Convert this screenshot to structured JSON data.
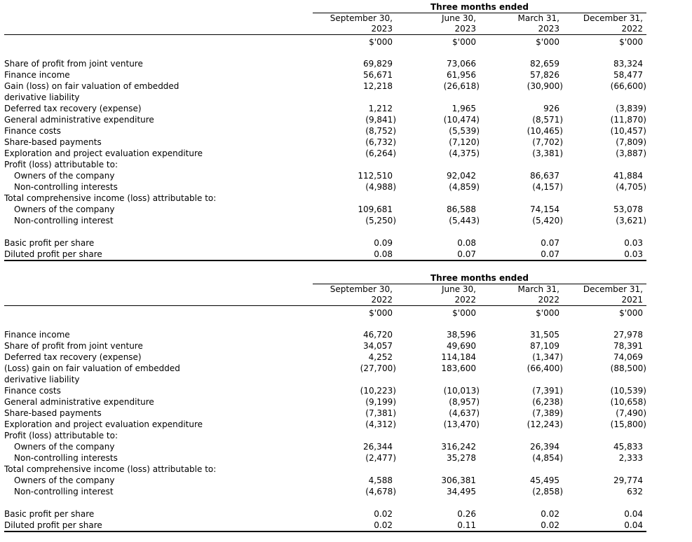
{
  "page": {
    "background_color": "#ffffff",
    "text_color": "#000000"
  },
  "tables": [
    {
      "name": "quarterly-results-2023",
      "title": "Three months ended",
      "unit": "$'000",
      "columns": [
        {
          "line1": "September 30,",
          "line2": "2023"
        },
        {
          "line1": "June 30,",
          "line2": "2023"
        },
        {
          "line1": "March 31,",
          "line2": "2023"
        },
        {
          "line1": "December 31,",
          "line2": "2022"
        }
      ],
      "rows": [
        {
          "label": "Share of profit from joint venture",
          "values": [
            "69,829",
            "73,066",
            "82,659",
            "83,324"
          ]
        },
        {
          "label": "Finance income",
          "values": [
            "56,671",
            "61,956",
            "57,826",
            "58,477"
          ]
        },
        {
          "label": "Gain (loss) on fair valuation of embedded",
          "label2": "derivative liability",
          "values": [
            "12,218",
            "(26,618)",
            "(30,900)",
            "(66,600)"
          ]
        },
        {
          "label": "Deferred tax recovery (expense)",
          "values": [
            "1,212",
            "1,965",
            "926",
            "(3,839)"
          ]
        },
        {
          "label": "General administrative expenditure",
          "values": [
            "(9,841)",
            "(10,474)",
            "(8,571)",
            "(11,870)"
          ]
        },
        {
          "label": "Finance costs",
          "values": [
            "(8,752)",
            "(5,539)",
            "(10,465)",
            "(10,457)"
          ]
        },
        {
          "label": "Share-based payments",
          "values": [
            "(6,732)",
            "(7,120)",
            "(7,702)",
            "(7,809)"
          ]
        },
        {
          "label": "Exploration and project evaluation expenditure",
          "values": [
            "(6,264)",
            "(4,375)",
            "(3,381)",
            "(3,887)"
          ]
        },
        {
          "label": "Profit (loss) attributable to:"
        },
        {
          "label": "Owners of the company",
          "indent": true,
          "values": [
            "112,510",
            "92,042",
            "86,637",
            "41,884"
          ]
        },
        {
          "label": "Non-controlling interests",
          "indent": true,
          "values": [
            "(4,988)",
            "(4,859)",
            "(4,157)",
            "(4,705)"
          ]
        },
        {
          "label": "Total comprehensive income (loss) attributable to:"
        },
        {
          "label": "Owners of the company",
          "indent": true,
          "values": [
            "109,681",
            "86,588",
            "74,154",
            "53,078"
          ]
        },
        {
          "label": "Non-controlling interest",
          "indent": true,
          "values": [
            "(5,250)",
            "(5,443)",
            "(5,420)",
            "(3,621)"
          ]
        },
        {
          "label": "Basic profit per share",
          "gap_before": true,
          "values": [
            "0.09",
            "0.08",
            "0.07",
            "0.03"
          ]
        },
        {
          "label": "Diluted profit per share",
          "values": [
            "0.08",
            "0.07",
            "0.07",
            "0.03"
          ]
        }
      ]
    },
    {
      "name": "quarterly-results-2022",
      "title": "Three months ended",
      "unit": "$'000",
      "columns": [
        {
          "line1": "September 30,",
          "line2": "2022"
        },
        {
          "line1": "June 30,",
          "line2": "2022"
        },
        {
          "line1": "March 31,",
          "line2": "2022"
        },
        {
          "line1": "December 31,",
          "line2": "2021"
        }
      ],
      "rows": [
        {
          "label": "Finance income",
          "values": [
            "46,720",
            "38,596",
            "31,505",
            "27,978"
          ]
        },
        {
          "label": "Share of profit from joint venture",
          "values": [
            "34,057",
            "49,690",
            "87,109",
            "78,391"
          ]
        },
        {
          "label": "Deferred tax recovery (expense)",
          "values": [
            "4,252",
            "114,184",
            "(1,347)",
            "74,069"
          ]
        },
        {
          "label": "(Loss) gain on fair valuation of embedded",
          "label2": "derivative liability",
          "values": [
            "(27,700)",
            "183,600",
            "(66,400)",
            "(88,500)"
          ]
        },
        {
          "label": "Finance costs",
          "values": [
            "(10,223)",
            "(10,013)",
            "(7,391)",
            "(10,539)"
          ]
        },
        {
          "label": "General administrative expenditure",
          "values": [
            "(9,199)",
            "(8,957)",
            "(6,238)",
            "(10,658)"
          ]
        },
        {
          "label": "Share-based payments",
          "values": [
            "(7,381)",
            "(4,637)",
            "(7,389)",
            "(7,490)"
          ]
        },
        {
          "label": "Exploration and project evaluation expenditure",
          "values": [
            "(4,312)",
            "(13,470)",
            "(12,243)",
            "(15,800)"
          ]
        },
        {
          "label": "Profit (loss) attributable to:"
        },
        {
          "label": "Owners of the company",
          "indent": true,
          "values": [
            "26,344",
            "316,242",
            "26,394",
            "45,833"
          ]
        },
        {
          "label": "Non-controlling interests",
          "indent": true,
          "values": [
            "(2,477)",
            "35,278",
            "(4,854)",
            "2,333"
          ]
        },
        {
          "label": "Total comprehensive income (loss) attributable to:"
        },
        {
          "label": "Owners of the company",
          "indent": true,
          "values": [
            "4,588",
            "306,381",
            "45,495",
            "29,774"
          ]
        },
        {
          "label": "Non-controlling interest",
          "indent": true,
          "values": [
            "(4,678)",
            "34,495",
            "(2,858)",
            "632"
          ]
        },
        {
          "label": "Basic profit per share",
          "gap_before": true,
          "values": [
            "0.02",
            "0.26",
            "0.02",
            "0.04"
          ]
        },
        {
          "label": "Diluted profit per share",
          "values": [
            "0.02",
            "0.11",
            "0.02",
            "0.04"
          ]
        }
      ]
    }
  ]
}
